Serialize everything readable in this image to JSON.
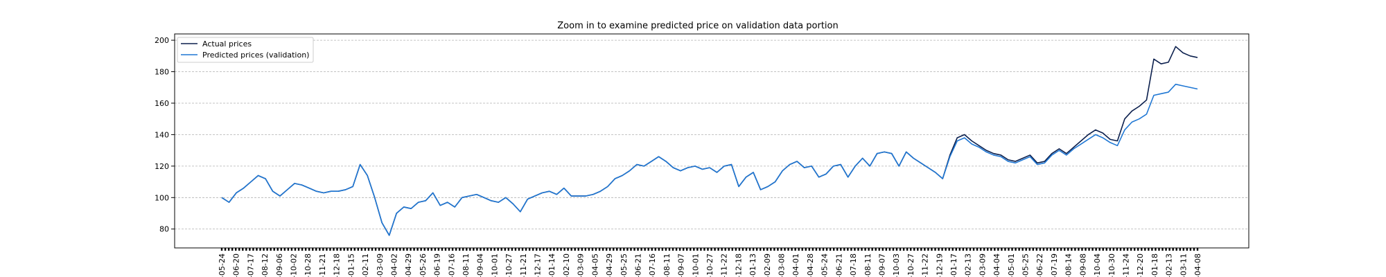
{
  "chart_data": {
    "type": "line",
    "title": "Zoom in to examine predicted price on validation data portion",
    "xlabel": "",
    "ylabel": "",
    "ylim": [
      68,
      204
    ],
    "yticks": [
      80,
      100,
      120,
      140,
      160,
      180,
      200
    ],
    "grid": "horizontal dashed",
    "legend_position": "top-left",
    "x_tick_labels": [
      "-05-24",
      "-06-20",
      "-07-17",
      "-08-12",
      "-09-06",
      "-10-02",
      "-10-28",
      "-11-21",
      "-12-18",
      "-01-15",
      "-02-11",
      "-03-09",
      "-04-02",
      "-04-29",
      "-05-26",
      "-06-19",
      "-07-16",
      "-08-11",
      "-09-04",
      "-10-01",
      "-10-27",
      "-11-21",
      "-12-17",
      "-01-14",
      "-02-10",
      "-03-09",
      "-04-05",
      "-04-29",
      "-05-25",
      "-06-21",
      "-07-16",
      "-08-11",
      "-09-07",
      "-10-01",
      "-10-27",
      "-11-22",
      "-12-18",
      "-01-13",
      "-02-09",
      "-03-08",
      "-04-01",
      "-04-28",
      "-05-24",
      "-06-21",
      "-07-18",
      "-08-11",
      "-09-07",
      "-10-03",
      "-10-27",
      "-11-22",
      "-12-19",
      "-01-17",
      "-02-13",
      "-03-09",
      "-04-04",
      "-05-01",
      "-05-25",
      "-06-22",
      "-07-19",
      "-08-14",
      "-09-08",
      "-10-04",
      "-10-30",
      "-11-24",
      "-12-20",
      "-01-18",
      "-02-13",
      "-03-11",
      "-04-08"
    ],
    "series": [
      {
        "name": "Actual prices",
        "color": "#0b1f4d",
        "values": [
          100,
          97,
          103,
          106,
          110,
          114,
          112,
          104,
          101,
          105,
          109,
          108,
          106,
          104,
          103,
          104,
          104,
          105,
          107,
          121,
          114,
          100,
          84,
          76,
          90,
          94,
          93,
          97,
          98,
          103,
          95,
          97,
          94,
          100,
          101,
          102,
          100,
          98,
          97,
          100,
          96,
          91,
          99,
          101,
          103,
          104,
          102,
          106,
          101,
          101,
          101,
          102,
          104,
          107,
          112,
          114,
          117,
          121,
          120,
          123,
          126,
          123,
          119,
          117,
          119,
          120,
          118,
          119,
          116,
          120,
          121,
          107,
          113,
          116,
          105,
          107,
          110,
          117,
          121,
          123,
          119,
          120,
          113,
          115,
          120,
          121,
          113,
          120,
          125,
          120,
          128,
          129,
          128,
          120,
          129,
          125,
          122,
          119,
          116,
          112,
          127,
          138,
          140,
          136,
          133,
          130,
          128,
          127,
          124,
          123,
          125,
          127,
          122,
          123,
          128,
          131,
          128,
          132,
          136,
          140,
          143,
          141,
          137,
          136,
          150,
          155,
          158,
          162,
          188,
          185,
          186,
          196,
          192,
          190,
          189
        ]
      },
      {
        "name": "Predicted prices (validation)",
        "color": "#1f77d4",
        "values": [
          100,
          97,
          103,
          106,
          110,
          114,
          112,
          104,
          101,
          105,
          109,
          108,
          106,
          104,
          103,
          104,
          104,
          105,
          107,
          121,
          114,
          100,
          84,
          76,
          90,
          94,
          93,
          97,
          98,
          103,
          95,
          97,
          94,
          100,
          101,
          102,
          100,
          98,
          97,
          100,
          96,
          91,
          99,
          101,
          103,
          104,
          102,
          106,
          101,
          101,
          101,
          102,
          104,
          107,
          112,
          114,
          117,
          121,
          120,
          123,
          126,
          123,
          119,
          117,
          119,
          120,
          118,
          119,
          116,
          120,
          121,
          107,
          113,
          116,
          105,
          107,
          110,
          117,
          121,
          123,
          119,
          120,
          113,
          115,
          120,
          121,
          113,
          120,
          125,
          120,
          128,
          129,
          128,
          120,
          129,
          125,
          122,
          119,
          116,
          112,
          126,
          136,
          138,
          134,
          132,
          129,
          127,
          126,
          123,
          122,
          124,
          126,
          121,
          122,
          127,
          130,
          127,
          131,
          134,
          137,
          140,
          138,
          135,
          133,
          143,
          148,
          150,
          153,
          165,
          166,
          167,
          172,
          171,
          170,
          169
        ]
      }
    ]
  }
}
